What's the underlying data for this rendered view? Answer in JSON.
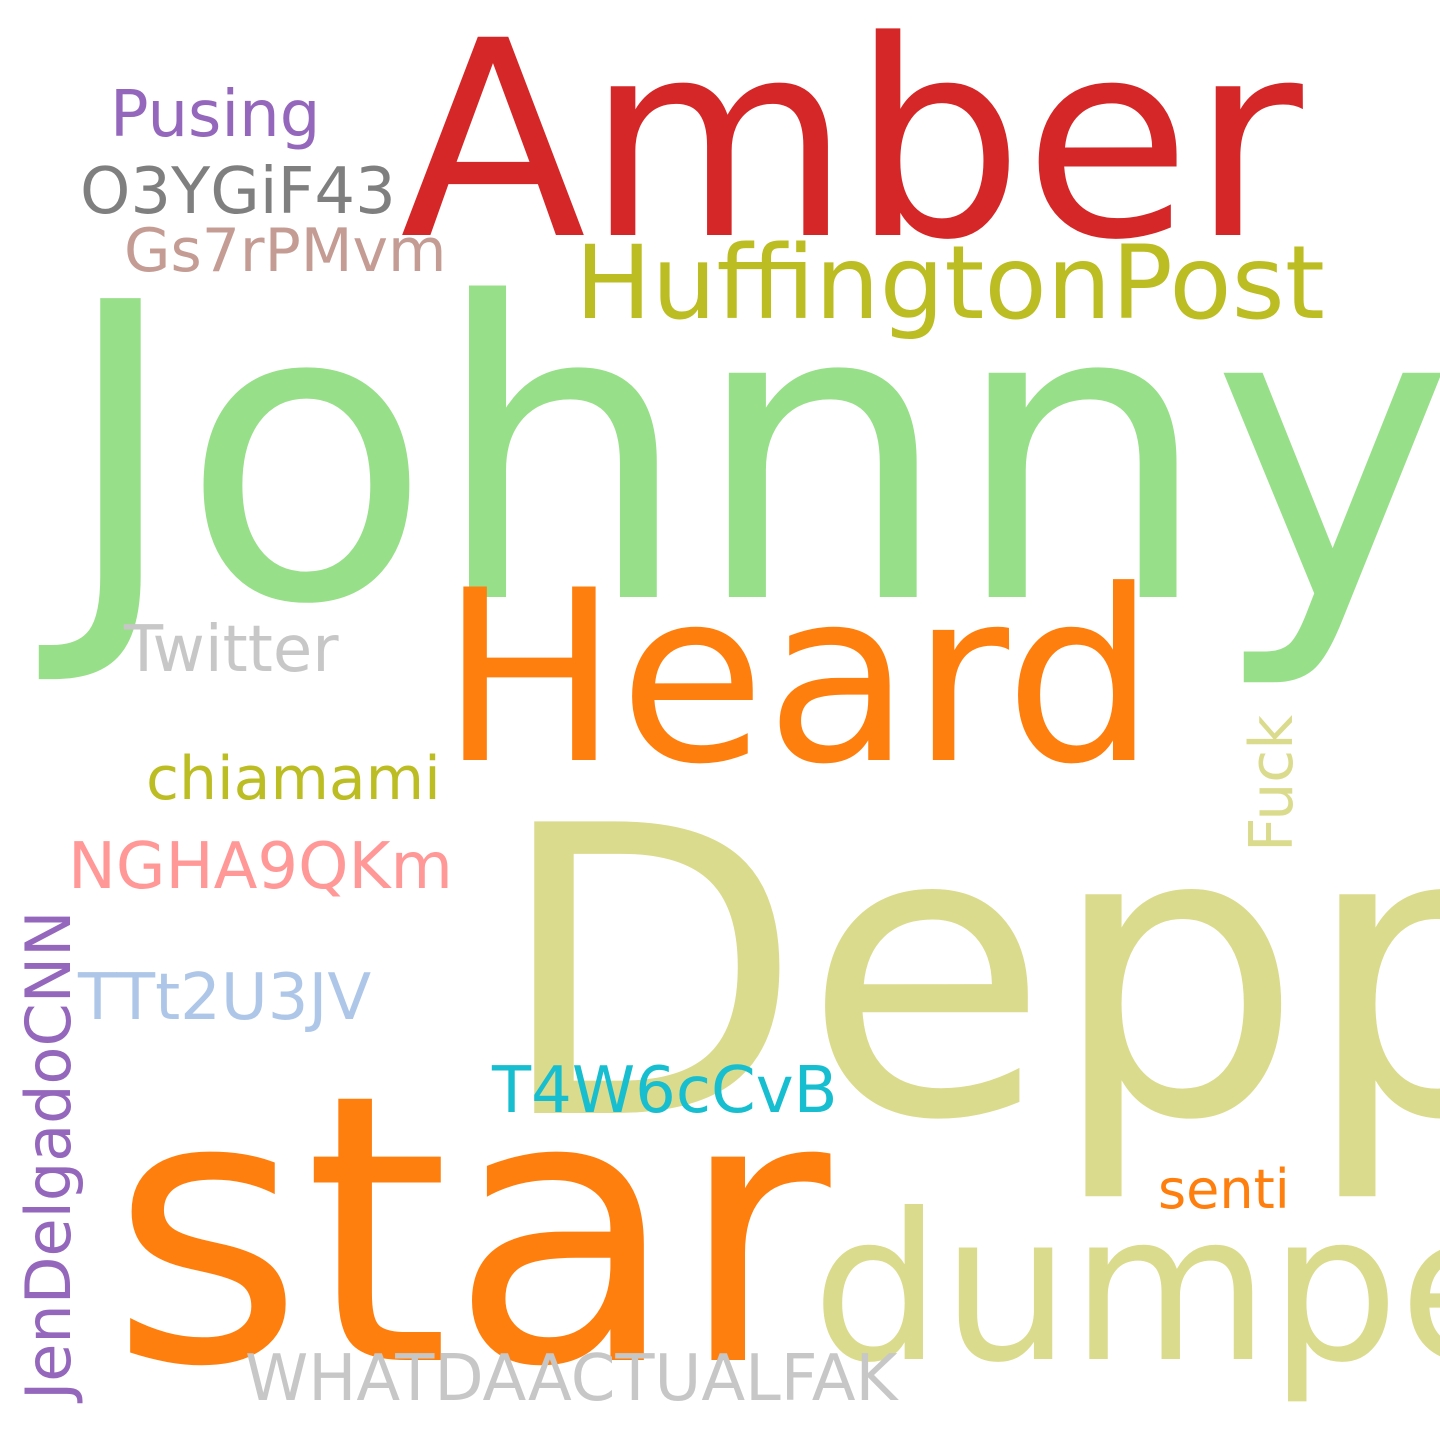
{
  "cloud": {
    "background": "#ffffff",
    "words": {
      "amber": {
        "text": "Amber",
        "color": "#d62728"
      },
      "johnny": {
        "text": "Johnny",
        "color": "#98df8a"
      },
      "heard": {
        "text": "Heard",
        "color": "#ff7f0e"
      },
      "depp": {
        "text": "Depp",
        "color": "#dbdb8d"
      },
      "star": {
        "text": "star",
        "color": "#ff7f0e"
      },
      "dumped": {
        "text": "dumped",
        "color": "#dbdb8d"
      },
      "huffington": {
        "text": "HuffingtonPost",
        "color": "#bcbd22"
      },
      "pusing": {
        "text": "Pusing",
        "color": "#9467bd"
      },
      "o3ygif43": {
        "text": "O3YGiF43",
        "color": "#7f7f7f"
      },
      "gs7rpmvm": {
        "text": "Gs7rPMvm",
        "color": "#c49c94"
      },
      "twitter": {
        "text": "Twitter",
        "color": "#c7c7c7"
      },
      "chiamami": {
        "text": "chiamami",
        "color": "#bcbd22"
      },
      "ngha9qkm": {
        "text": "NGHA9QKm",
        "color": "#ff9896"
      },
      "ttt2u3jv": {
        "text": "TTt2U3JV",
        "color": "#aec7e8"
      },
      "t4w6ccvb": {
        "text": "T4W6cCvB",
        "color": "#17becf"
      },
      "senti": {
        "text": "senti",
        "color": "#ff7f0e"
      },
      "whatdaa": {
        "text": "WHATDAACTUALFAK",
        "color": "#c7c7c7"
      },
      "fuck": {
        "text": "Fuck",
        "color": "#dbdb8d"
      },
      "jendelgado": {
        "text": "JenDelgadoCNN",
        "color": "#9467bd"
      }
    }
  }
}
